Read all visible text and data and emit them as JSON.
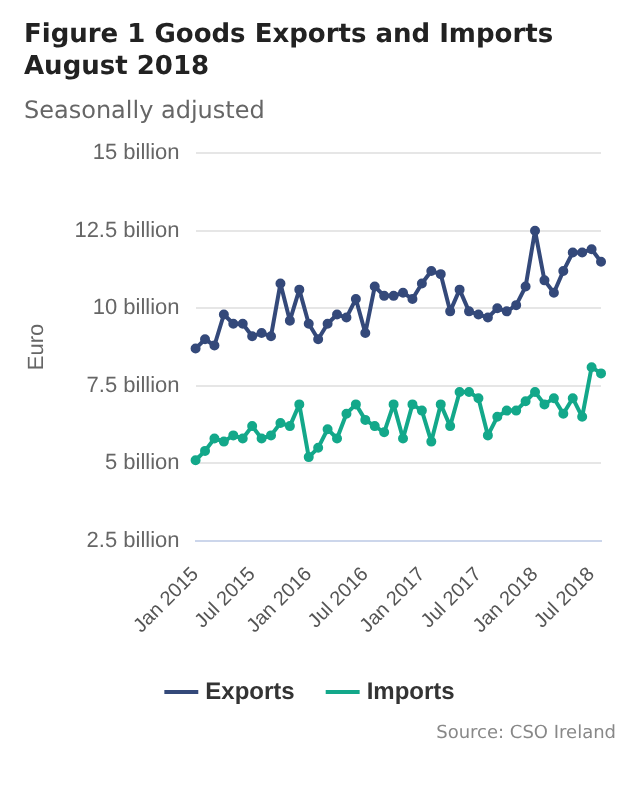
{
  "chart_data": {
    "type": "line",
    "title": "Figure 1 Goods Exports and Imports August 2018",
    "subtitle": "Seasonally adjusted",
    "ylabel": "Euro",
    "categories": [
      "Jan 2015",
      null,
      null,
      null,
      null,
      null,
      "Jul 2015",
      null,
      null,
      null,
      null,
      null,
      "Jan 2016",
      null,
      null,
      null,
      null,
      null,
      "Jul 2016",
      null,
      null,
      null,
      null,
      null,
      "Jan 2017",
      null,
      null,
      null,
      null,
      null,
      "Jul 2017",
      null,
      null,
      null,
      null,
      null,
      "Jan 2018",
      null,
      null,
      null,
      null,
      null,
      "Jul 2018",
      null
    ],
    "series": [
      {
        "name": "Exports",
        "color": "#34497a",
        "values": [
          8.7,
          9.0,
          8.8,
          9.8,
          9.5,
          9.5,
          9.1,
          9.2,
          9.1,
          10.8,
          9.6,
          10.6,
          9.5,
          9.0,
          9.5,
          9.8,
          9.7,
          10.3,
          9.2,
          10.7,
          10.4,
          10.4,
          10.5,
          10.3,
          10.8,
          11.2,
          11.1,
          9.9,
          10.6,
          9.9,
          9.8,
          9.7,
          10.0,
          9.9,
          10.1,
          10.7,
          12.5,
          10.9,
          10.5,
          11.2,
          11.8,
          11.8,
          11.9,
          11.5
        ]
      },
      {
        "name": "Imports",
        "color": "#13a88a",
        "values": [
          5.1,
          5.4,
          5.8,
          5.7,
          5.9,
          5.8,
          6.2,
          5.8,
          5.9,
          6.3,
          6.2,
          6.9,
          5.2,
          5.5,
          6.1,
          5.8,
          6.6,
          6.9,
          6.4,
          6.2,
          6.0,
          6.9,
          5.8,
          6.9,
          6.7,
          5.7,
          6.9,
          6.2,
          7.3,
          7.3,
          7.1,
          5.9,
          6.5,
          6.7,
          6.7,
          7.0,
          7.3,
          6.9,
          7.1,
          6.6,
          7.1,
          6.5,
          8.1,
          7.9
        ]
      }
    ],
    "ylim": [
      2.5,
      15
    ],
    "yticks": [
      {
        "value": 2.5,
        "label": "2.5 billion"
      },
      {
        "value": 5,
        "label": "5 billion"
      },
      {
        "value": 7.5,
        "label": "7.5 billion"
      },
      {
        "value": 10,
        "label": "10 billion"
      },
      {
        "value": 12.5,
        "label": "12.5 billion"
      },
      {
        "value": 15,
        "label": "15 billion"
      }
    ],
    "grid": "y",
    "legend": "bottom",
    "marker": "circle",
    "line_style": "solid",
    "annotations": [
      "Source: CSO Ireland"
    ]
  }
}
